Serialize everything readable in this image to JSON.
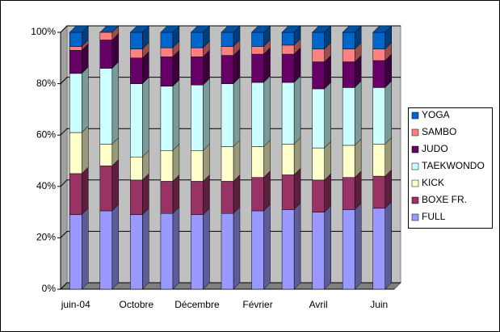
{
  "chart_data": {
    "type": "stacked_bar_100",
    "categories": [
      "juin-04",
      null,
      "Octobre",
      null,
      "Décembre",
      null,
      "Février",
      null,
      "Avril",
      null,
      "Juin"
    ],
    "series": [
      {
        "name": "FULL",
        "color": "#9999ff",
        "values": [
          29,
          30.5,
          29,
          29.5,
          29,
          29.5,
          30.5,
          31,
          30,
          31,
          31.5
        ]
      },
      {
        "name": "BOXE FR.",
        "color": "#993366",
        "values": [
          16,
          17.5,
          13.5,
          12.5,
          13,
          12.5,
          13,
          13.5,
          12.5,
          12.5,
          12.5
        ]
      },
      {
        "name": "KICK",
        "color": "#ffffcc",
        "values": [
          16,
          8.5,
          9,
          12,
          12,
          13.5,
          12,
          12,
          12.5,
          12.5,
          12.5
        ]
      },
      {
        "name": "TAEKWONDO",
        "color": "#ccffff",
        "values": [
          23,
          29.5,
          28.5,
          25,
          25.5,
          24.5,
          25,
          24,
          23,
          22.5,
          22
        ]
      },
      {
        "name": "JUDO",
        "color": "#660066",
        "values": [
          9,
          11,
          10,
          11.5,
          11,
          11,
          11,
          11,
          10.5,
          10,
          10.5
        ]
      },
      {
        "name": "SAMBO",
        "color": "#ff8080",
        "values": [
          1.5,
          3,
          3.5,
          3.5,
          3.5,
          3.5,
          3,
          3.5,
          5,
          5,
          4.5
        ]
      },
      {
        "name": "YOGA",
        "color": "#0066cc",
        "values": [
          5.5,
          0,
          6.5,
          6,
          6,
          5.5,
          5.5,
          5,
          6.5,
          6.5,
          6.5
        ]
      }
    ],
    "ylim": [
      0,
      100
    ],
    "yticks": [
      {
        "value": 0,
        "label": "0%"
      },
      {
        "value": 20,
        "label": "20%"
      },
      {
        "value": 40,
        "label": "40%"
      },
      {
        "value": 60,
        "label": "60%"
      },
      {
        "value": 80,
        "label": "80%"
      },
      {
        "value": 100,
        "label": "100%"
      }
    ],
    "grid": true
  }
}
